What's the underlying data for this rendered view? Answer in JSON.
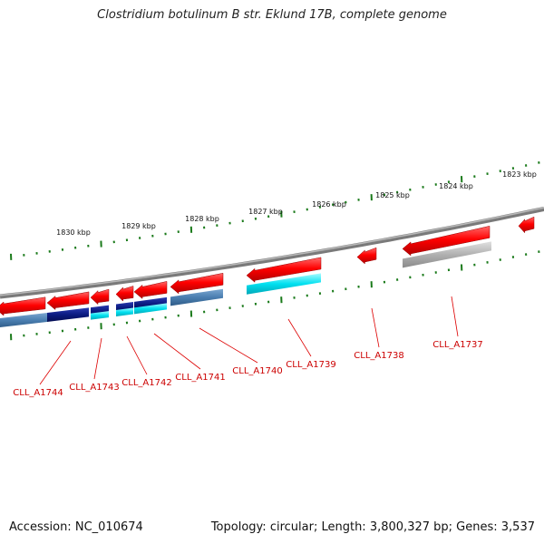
{
  "title": "Clostridium botulinum B str. Eklund 17B, complete genome",
  "footer": {
    "accession_label": "Accession:",
    "accession": "NC_010674",
    "topology_label": "Topology:",
    "topology": "circular",
    "length_label": "Length:",
    "length": "3,800,327 bp",
    "genes_label": "Genes:",
    "genes": "3,537"
  },
  "scale_labels": [
    "1830 kbp",
    "1829 kbp",
    "1828 kbp",
    "1827 kbp",
    "1826 kbp",
    "1825 kbp",
    "1824 kbp",
    "1823 kbp"
  ],
  "gene_labels": [
    "CLL_A1744",
    "CLL_A1743",
    "CLL_A1742",
    "CLL_A1741",
    "CLL_A1740",
    "CLL_A1739",
    "CLL_A1738",
    "CLL_A1737"
  ],
  "colors": {
    "cds": "#ff0000",
    "backbone": "#888888",
    "tick": "#1a7a1a",
    "label_text": "#cc0000",
    "leader_line": "#dd0000",
    "cog_navy": "#0a1a80",
    "cog_steel": "#4a7eb0",
    "cog_cyan": "#00e0f0",
    "cog_gray": "#b0b0b0"
  }
}
